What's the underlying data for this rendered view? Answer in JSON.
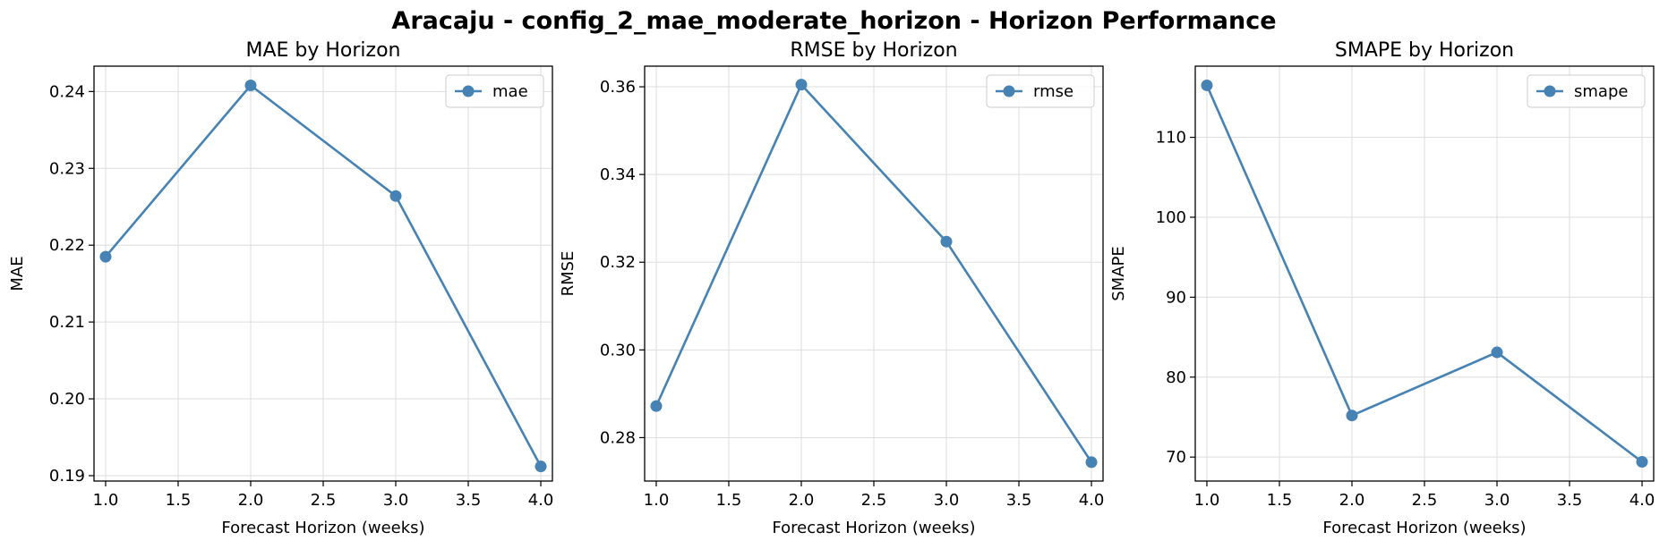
{
  "figure": {
    "title": "Aracaju - config_2_mae_moderate_horizon - Horizon Performance"
  },
  "colors": {
    "line": "#4682b4",
    "grid": "#dddddd",
    "axis": "#000000"
  },
  "chart_data": [
    {
      "type": "line",
      "title": "MAE by Horizon",
      "xlabel": "Forecast Horizon (weeks)",
      "ylabel": "MAE",
      "x": [
        1.0,
        2.0,
        3.0,
        4.0
      ],
      "series": [
        {
          "name": "mae",
          "values": [
            0.2185,
            0.2408,
            0.2264,
            0.1912
          ]
        }
      ],
      "xlim": [
        0.92,
        4.08
      ],
      "ylim": [
        0.1893,
        0.2433
      ],
      "xticks": [
        1.0,
        1.5,
        2.0,
        2.5,
        3.0,
        3.5,
        4.0
      ],
      "xtick_labels": [
        "1.0",
        "1.5",
        "2.0",
        "2.5",
        "3.0",
        "3.5",
        "4.0"
      ],
      "yticks": [
        0.19,
        0.2,
        0.21,
        0.22,
        0.23,
        0.24
      ],
      "ytick_labels": [
        "0.19",
        "0.20",
        "0.21",
        "0.22",
        "0.23",
        "0.24"
      ],
      "grid": true,
      "legend": "top-right"
    },
    {
      "type": "line",
      "title": "RMSE by Horizon",
      "xlabel": "Forecast Horizon (weeks)",
      "ylabel": "RMSE",
      "x": [
        1.0,
        2.0,
        3.0,
        4.0
      ],
      "series": [
        {
          "name": "rmse",
          "values": [
            0.2872,
            0.3605,
            0.3247,
            0.2744
          ]
        }
      ],
      "xlim": [
        0.92,
        4.08
      ],
      "ylim": [
        0.2701,
        0.3647
      ],
      "xticks": [
        1.0,
        1.5,
        2.0,
        2.5,
        3.0,
        3.5,
        4.0
      ],
      "xtick_labels": [
        "1.0",
        "1.5",
        "2.0",
        "2.5",
        "3.0",
        "3.5",
        "4.0"
      ],
      "yticks": [
        0.28,
        0.3,
        0.32,
        0.34,
        0.36
      ],
      "ytick_labels": [
        "0.28",
        "0.30",
        "0.32",
        "0.34",
        "0.36"
      ],
      "grid": true,
      "legend": "top-right"
    },
    {
      "type": "line",
      "title": "SMAPE by Horizon",
      "xlabel": "Forecast Horizon (weeks)",
      "ylabel": "SMAPE",
      "x": [
        1.0,
        2.0,
        3.0,
        4.0
      ],
      "series": [
        {
          "name": "smape",
          "values": [
            116.5,
            75.2,
            83.1,
            69.4
          ]
        }
      ],
      "xlim": [
        0.92,
        4.08
      ],
      "ylim": [
        67.0,
        118.9
      ],
      "xticks": [
        1.0,
        1.5,
        2.0,
        2.5,
        3.0,
        3.5,
        4.0
      ],
      "xtick_labels": [
        "1.0",
        "1.5",
        "2.0",
        "2.5",
        "3.0",
        "3.5",
        "4.0"
      ],
      "yticks": [
        70,
        80,
        90,
        100,
        110
      ],
      "ytick_labels": [
        "70",
        "80",
        "90",
        "100",
        "110"
      ],
      "grid": true,
      "legend": "top-right"
    }
  ]
}
